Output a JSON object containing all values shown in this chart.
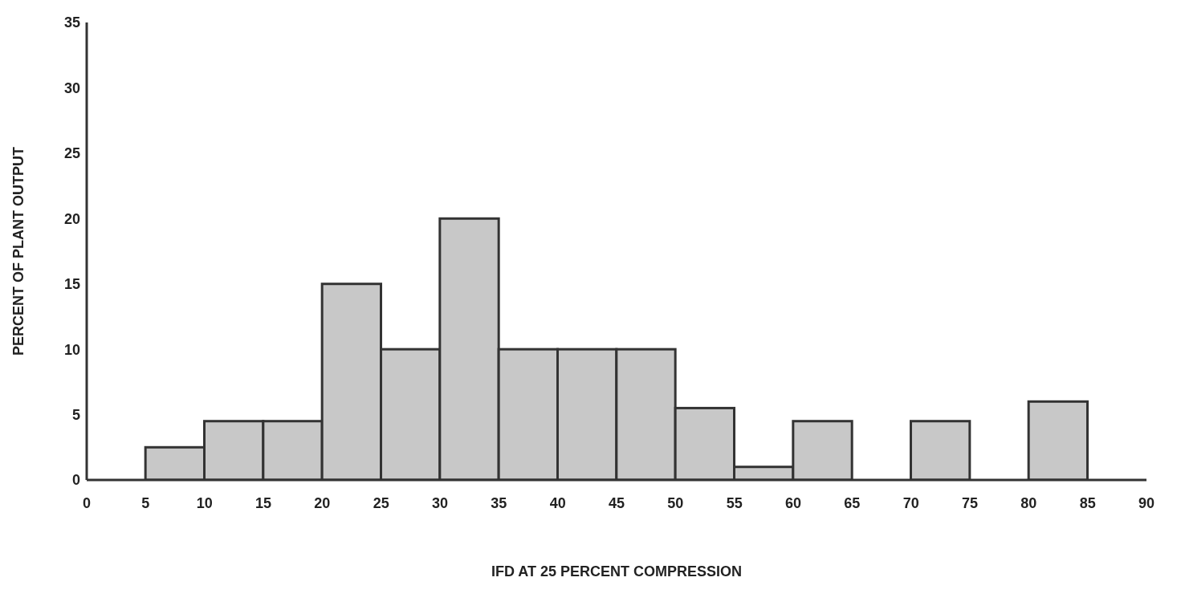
{
  "chart_data": {
    "type": "histogram",
    "xlabel": "IFD AT 25 PERCENT COMPRESSION",
    "ylabel": "PERCENT OF PLANT OUTPUT",
    "bins": [
      0,
      5,
      10,
      15,
      20,
      25,
      30,
      35,
      40,
      45,
      50,
      55,
      60,
      65,
      70,
      75,
      80,
      85,
      90
    ],
    "values": [
      0,
      2.5,
      4.5,
      4.5,
      15,
      10,
      20,
      10,
      10,
      10,
      5.5,
      1,
      4.5,
      0,
      4.5,
      0,
      6,
      0
    ],
    "color": "#c8c8c8",
    "xlim": [
      0,
      90
    ],
    "xticks": [
      0,
      5,
      10,
      15,
      20,
      25,
      30,
      35,
      40,
      45,
      50,
      55,
      60,
      65,
      70,
      75,
      80,
      85,
      90
    ],
    "ylim": [
      0,
      35
    ],
    "yticks": [
      0,
      5,
      10,
      15,
      20,
      25,
      30,
      35
    ],
    "grid": false
  }
}
